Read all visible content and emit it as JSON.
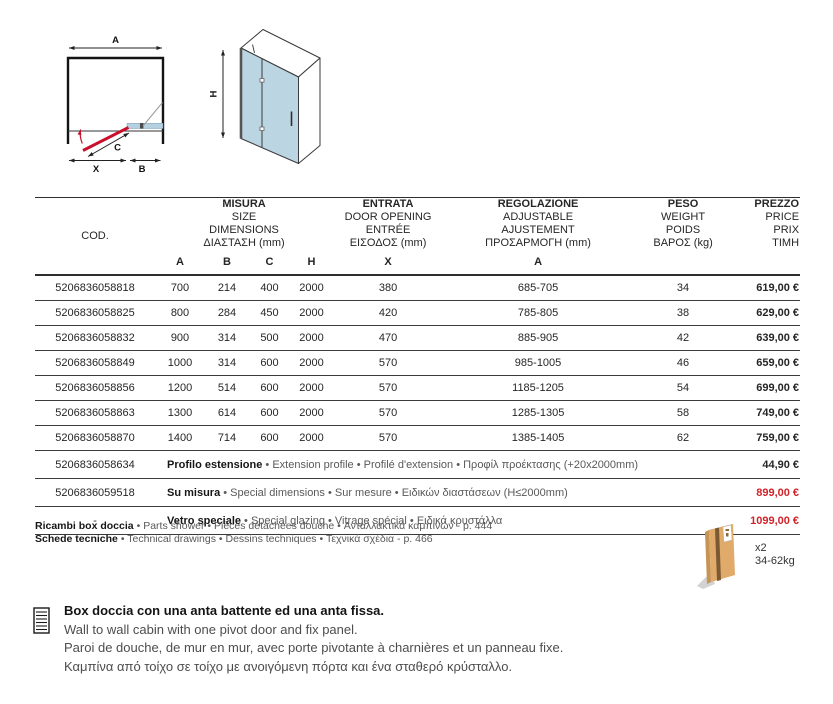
{
  "diagram": {
    "plan": {
      "label_a": "A",
      "label_b": "B",
      "label_c": "C",
      "label_x": "X"
    },
    "elevation": {
      "label_h": "H"
    }
  },
  "table": {
    "cod_header": "COD.",
    "groups": {
      "misura": [
        "MISURA",
        "SIZE",
        "DIMENSIONS",
        "ΔΙΑΣΤΑΣΗ (mm)"
      ],
      "entrata": [
        "ENTRATA",
        "DOOR OPENING",
        "ENTRÉE",
        "ΕΙΣΟΔΟΣ (mm)"
      ],
      "regolazione": [
        "REGOLAZIONE",
        "ADJUSTABLE",
        "AJUSTEMENT",
        "ΠΡΟΣΑΡΜΟΓΗ (mm)"
      ],
      "peso": [
        "PESO",
        "WEIGHT",
        "POIDS",
        "ΒΑΡΟΣ (kg)"
      ],
      "prezzo": [
        "PREZZO",
        "PRICE",
        "PRIX",
        "ΤΙΜΗ"
      ]
    },
    "subheaders": {
      "a": "A",
      "b": "B",
      "c": "C",
      "h": "H",
      "x": "X",
      "adj": "A"
    },
    "rows": [
      {
        "cod": "5206836058818",
        "a": "700",
        "b": "214",
        "c": "400",
        "h": "2000",
        "x": "380",
        "adj": "685-705",
        "kg": "34",
        "price": "619,00 €"
      },
      {
        "cod": "5206836058825",
        "a": "800",
        "b": "284",
        "c": "450",
        "h": "2000",
        "x": "420",
        "adj": "785-805",
        "kg": "38",
        "price": "629,00 €"
      },
      {
        "cod": "5206836058832",
        "a": "900",
        "b": "314",
        "c": "500",
        "h": "2000",
        "x": "470",
        "adj": "885-905",
        "kg": "42",
        "price": "639,00 €"
      },
      {
        "cod": "5206836058849",
        "a": "1000",
        "b": "314",
        "c": "600",
        "h": "2000",
        "x": "570",
        "adj": "985-1005",
        "kg": "46",
        "price": "659,00 €"
      },
      {
        "cod": "5206836058856",
        "a": "1200",
        "b": "514",
        "c": "600",
        "h": "2000",
        "x": "570",
        "adj": "1185-1205",
        "kg": "54",
        "price": "699,00 €"
      },
      {
        "cod": "5206836058863",
        "a": "1300",
        "b": "614",
        "c": "600",
        "h": "2000",
        "x": "570",
        "adj": "1285-1305",
        "kg": "58",
        "price": "749,00 €"
      },
      {
        "cod": "5206836058870",
        "a": "1400",
        "b": "714",
        "c": "600",
        "h": "2000",
        "x": "570",
        "adj": "1385-1405",
        "kg": "62",
        "price": "759,00 €"
      }
    ],
    "special_rows": [
      {
        "cod": "5206836058634",
        "bold": "Profilo estensione",
        "rest": "• Extension profile • Profilé d'extension • Προφίλ προέκτασης (+20x2000mm)",
        "price": "44,90 €",
        "price_red": false
      },
      {
        "cod": "5206836059518",
        "bold": "Su misura",
        "rest": "• Special dimensions • Sur mesure • Ειδικών διαστάσεων (H≤2000mm)",
        "price": "899,00 €",
        "price_red": true
      },
      {
        "cod": "-",
        "bold": "Vetro speciale",
        "rest": "• Special glazing • Vitrage spécial • Ειδικά κρυστάλλα",
        "price": "1099,00 €",
        "price_red": true
      }
    ]
  },
  "footnotes": [
    {
      "bold": "Ricambi box doccia",
      "rest": "• Parts shower • Pièces détachées douche • Ανταλλακτικά καμπινών - p. 444"
    },
    {
      "bold": "Schede tecniche",
      "rest": "• Technical drawings • Dessins techniques • Τεχνικά σχέδια - p. 466"
    }
  ],
  "package": {
    "quantity": "x2",
    "weight": "34-62kg"
  },
  "description": {
    "it": "Box doccia con una anta battente ed una anta fissa.",
    "en": "Wall to wall cabin with one pivot door and fix panel.",
    "fr": "Paroi de douche, de mur en mur, avec porte pivotante à charnières et un panneau fixe.",
    "el": "Καμπίνα από τοίχο σε τοίχο με ανοιγόμενη πόρτα και ένα σταθερό κρύσταλλο."
  },
  "colors": {
    "price_red": "#d2232a",
    "door_red": "#c8102e",
    "glass_blue": "#b5d0e0",
    "box_tan": "#e0aa6b"
  }
}
